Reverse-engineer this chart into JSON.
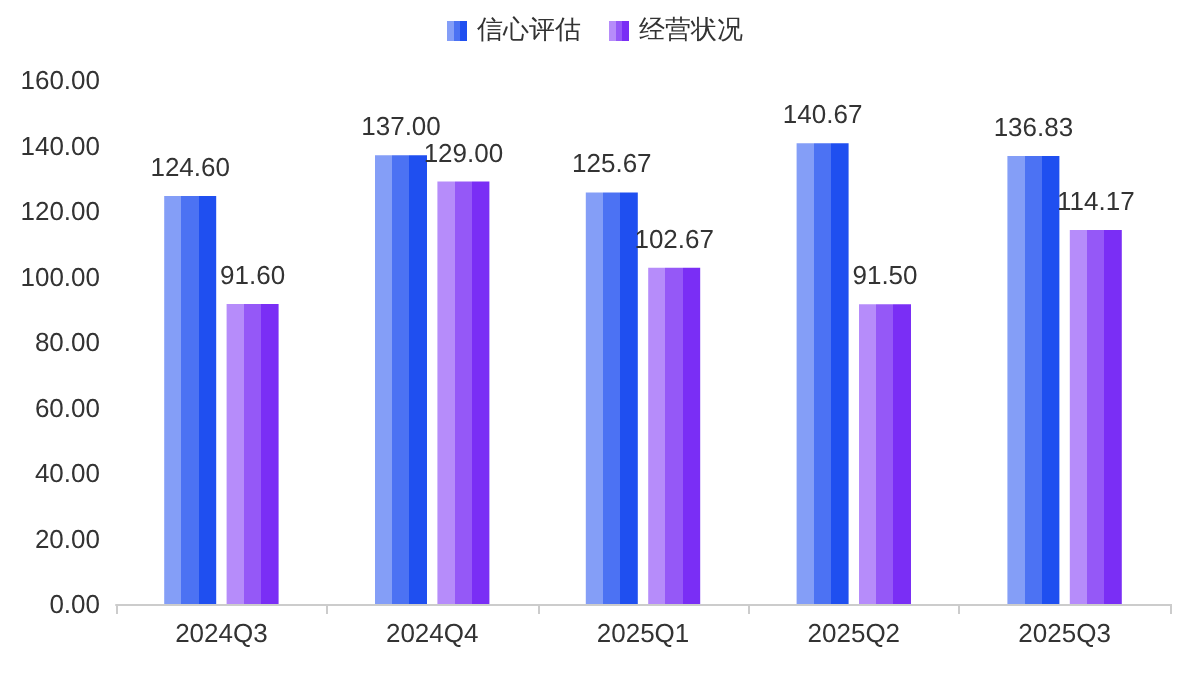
{
  "chart_data": {
    "type": "bar",
    "categories": [
      "2024Q3",
      "2024Q4",
      "2025Q1",
      "2025Q2",
      "2025Q3"
    ],
    "series": [
      {
        "name": "信心评估",
        "color": "#1f4ff0",
        "values": [
          124.6,
          137.0,
          125.67,
          140.67,
          136.83
        ],
        "value_labels": [
          "124.60",
          "137.00",
          "125.67",
          "140.67",
          "136.83"
        ]
      },
      {
        "name": "经营状况",
        "color": "#7a2ef5",
        "values": [
          91.6,
          129.0,
          102.67,
          91.5,
          114.17
        ],
        "value_labels": [
          "91.60",
          "129.00",
          "102.67",
          "91.50",
          "114.17"
        ]
      }
    ],
    "ylim": [
      0,
      160
    ],
    "yticks": [
      {
        "value": 0,
        "label": "0.00"
      },
      {
        "value": 20,
        "label": "20.00"
      },
      {
        "value": 40,
        "label": "40.00"
      },
      {
        "value": 60,
        "label": "60.00"
      },
      {
        "value": 80,
        "label": "80.00"
      },
      {
        "value": 100,
        "label": "100.00"
      },
      {
        "value": 120,
        "label": "120.00"
      },
      {
        "value": 140,
        "label": "140.00"
      },
      {
        "value": 160,
        "label": "160.00"
      }
    ],
    "grid": false,
    "legend": "top"
  }
}
